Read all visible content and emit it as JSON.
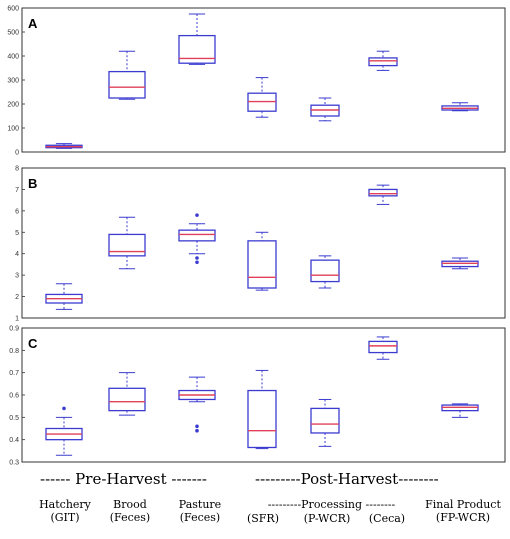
{
  "colors": {
    "box": "#3b3bd0",
    "median": "#e0405a",
    "frame": "#333333"
  },
  "chart_data": [
    {
      "type": "box",
      "panel": "A",
      "categories": [
        "Hatchery (GIT)",
        "Brood (Feces)",
        "Pasture (Feces)",
        "Processing (SFR)",
        "Processing (P-WCR)",
        "Processing (Ceca)",
        "Final Product (FP-WCR)"
      ],
      "ylim": [
        0,
        600
      ],
      "yticks": [
        "0",
        "100",
        "200",
        "300",
        "400",
        "500",
        "600"
      ],
      "boxes": [
        {
          "min": 15,
          "q1": 18,
          "median": 22,
          "q3": 28,
          "max": 35,
          "outliers": []
        },
        {
          "min": 220,
          "q1": 225,
          "median": 270,
          "q3": 335,
          "max": 420,
          "outliers": []
        },
        {
          "min": 365,
          "q1": 370,
          "median": 390,
          "q3": 485,
          "max": 575,
          "outliers": []
        },
        {
          "min": 145,
          "q1": 170,
          "median": 210,
          "q3": 245,
          "max": 310,
          "outliers": []
        },
        {
          "min": 130,
          "q1": 150,
          "median": 175,
          "q3": 195,
          "max": 225,
          "outliers": []
        },
        {
          "min": 340,
          "q1": 360,
          "median": 380,
          "q3": 392,
          "max": 420,
          "outliers": []
        },
        {
          "min": 172,
          "q1": 175,
          "median": 182,
          "q3": 192,
          "max": 205,
          "outliers": []
        }
      ]
    },
    {
      "type": "box",
      "panel": "B",
      "categories": [
        "Hatchery (GIT)",
        "Brood (Feces)",
        "Pasture (Feces)",
        "Processing (SFR)",
        "Processing (P-WCR)",
        "Processing (Ceca)",
        "Final Product (FP-WCR)"
      ],
      "ylim": [
        1,
        8
      ],
      "yticks": [
        "1",
        "2",
        "3",
        "4",
        "5",
        "6",
        "7",
        "8"
      ],
      "boxes": [
        {
          "min": 1.4,
          "q1": 1.7,
          "median": 1.9,
          "q3": 2.1,
          "max": 2.6,
          "outliers": []
        },
        {
          "min": 3.3,
          "q1": 3.9,
          "median": 4.1,
          "q3": 4.9,
          "max": 5.7,
          "outliers": []
        },
        {
          "min": 4.0,
          "q1": 4.6,
          "median": 4.9,
          "q3": 5.1,
          "max": 5.4,
          "outliers": [
            3.6,
            3.8,
            5.8
          ]
        },
        {
          "min": 2.3,
          "q1": 2.4,
          "median": 2.9,
          "q3": 4.6,
          "max": 5.0,
          "outliers": []
        },
        {
          "min": 2.4,
          "q1": 2.7,
          "median": 3.0,
          "q3": 3.7,
          "max": 3.9,
          "outliers": []
        },
        {
          "min": 6.3,
          "q1": 6.7,
          "median": 6.8,
          "q3": 7.0,
          "max": 7.2,
          "outliers": []
        },
        {
          "min": 3.3,
          "q1": 3.4,
          "median": 3.55,
          "q3": 3.65,
          "max": 3.8,
          "outliers": []
        }
      ]
    },
    {
      "type": "box",
      "panel": "C",
      "categories": [
        "Hatchery (GIT)",
        "Brood (Feces)",
        "Pasture (Feces)",
        "Processing (SFR)",
        "Processing (P-WCR)",
        "Processing (Ceca)",
        "Final Product (FP-WCR)"
      ],
      "ylim": [
        0.3,
        0.9
      ],
      "yticks": [
        "0.3",
        "0.4",
        "0.5",
        "0.6",
        "0.7",
        "0.8",
        "0.9"
      ],
      "boxes": [
        {
          "min": 0.33,
          "q1": 0.4,
          "median": 0.425,
          "q3": 0.45,
          "max": 0.5,
          "outliers": [
            0.54
          ]
        },
        {
          "min": 0.51,
          "q1": 0.53,
          "median": 0.57,
          "q3": 0.63,
          "max": 0.7,
          "outliers": []
        },
        {
          "min": 0.57,
          "q1": 0.58,
          "median": 0.6,
          "q3": 0.62,
          "max": 0.68,
          "outliers": [
            0.44,
            0.46
          ]
        },
        {
          "min": 0.36,
          "q1": 0.365,
          "median": 0.44,
          "q3": 0.62,
          "max": 0.71,
          "outliers": []
        },
        {
          "min": 0.37,
          "q1": 0.43,
          "median": 0.47,
          "q3": 0.54,
          "max": 0.58,
          "outliers": []
        },
        {
          "min": 0.76,
          "q1": 0.79,
          "median": 0.82,
          "q3": 0.84,
          "max": 0.86,
          "outliers": []
        },
        {
          "min": 0.5,
          "q1": 0.53,
          "median": 0.545,
          "q3": 0.555,
          "max": 0.56,
          "outliers": []
        }
      ]
    }
  ],
  "footer": {
    "pre_harvest": "------ Pre-Harvest -------",
    "post_harvest": "---------Post-Harvest--------",
    "processing_line": "---------Processing --------",
    "categories": [
      {
        "top": "Hatchery",
        "bottom": "(GIT)"
      },
      {
        "top": "Brood",
        "bottom": "(Feces)"
      },
      {
        "top": "Pasture",
        "bottom": "(Feces)"
      },
      {
        "top": "",
        "bottom": "(SFR)"
      },
      {
        "top": "",
        "bottom": "(P-WCR)"
      },
      {
        "top": "",
        "bottom": "(Ceca)"
      },
      {
        "top": "Final Product",
        "bottom": "(FP-WCR)"
      }
    ]
  }
}
